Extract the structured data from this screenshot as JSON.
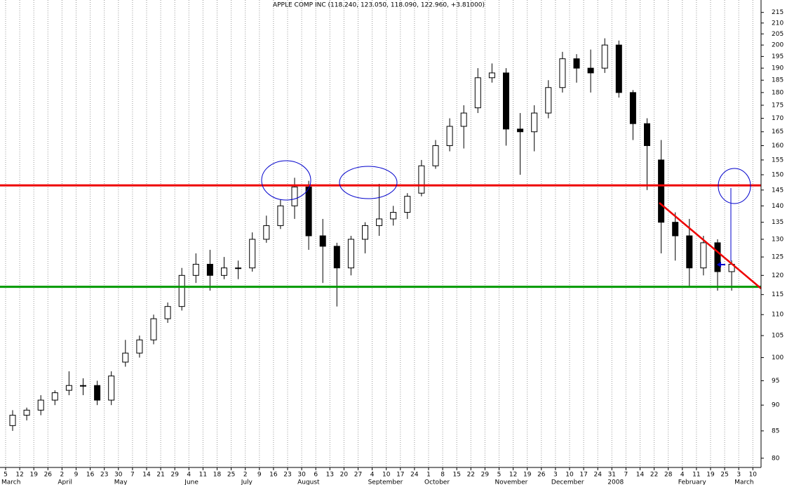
{
  "chart_data": {
    "type": "candlestick",
    "title": "APPLE COMP INC (118.240, 123.050, 118.090, 122.960, +3.81000)",
    "categories": [
      "5",
      "12",
      "19",
      "26",
      "2",
      "9",
      "16",
      "23",
      "30",
      "7",
      "14",
      "21",
      "29",
      "4",
      "11",
      "18",
      "25",
      "2",
      "9",
      "16",
      "23",
      "30",
      "6",
      "13",
      "20",
      "27",
      "4",
      "10",
      "17",
      "24",
      "1",
      "8",
      "15",
      "22",
      "29",
      "5",
      "12",
      "19",
      "26",
      "3",
      "10",
      "17",
      "24",
      "31",
      "7",
      "14",
      "22",
      "28",
      "4",
      "11",
      "19",
      "25",
      "3",
      "10"
    ],
    "months": [
      "March",
      null,
      null,
      null,
      "April",
      null,
      null,
      null,
      "May",
      null,
      null,
      null,
      null,
      "June",
      null,
      null,
      null,
      "July",
      null,
      null,
      null,
      "August",
      null,
      null,
      null,
      null,
      "September",
      null,
      null,
      null,
      "October",
      null,
      null,
      null,
      null,
      "November",
      null,
      null,
      null,
      "December",
      null,
      null,
      null,
      "2008",
      null,
      null,
      null,
      null,
      "February",
      null,
      null,
      null,
      "March",
      null
    ],
    "open": [
      86,
      88,
      89,
      91,
      93,
      94,
      94,
      91,
      99,
      101,
      104,
      109,
      112,
      120,
      123,
      120,
      122,
      122,
      130,
      134,
      140,
      146,
      131,
      128,
      122,
      130,
      134,
      136,
      138,
      144,
      153,
      160,
      167,
      174,
      186,
      188,
      166,
      165,
      172,
      182,
      194,
      190,
      190,
      200,
      180,
      168,
      155,
      135,
      131,
      122,
      129,
      121,
      null,
      null
    ],
    "high": [
      89,
      89.5,
      92,
      93,
      97,
      95.5,
      95,
      97,
      104,
      105,
      110,
      113,
      122,
      126,
      127,
      125,
      124,
      132,
      137,
      142,
      149,
      148,
      136,
      129,
      131,
      135,
      147,
      140,
      144,
      155,
      162,
      170,
      175,
      190,
      192,
      190,
      172,
      175,
      185,
      197,
      196,
      198,
      203,
      202,
      181,
      170,
      162,
      138,
      136,
      131,
      130,
      124,
      null,
      null
    ],
    "low": [
      85,
      87,
      88,
      90,
      92,
      92,
      90,
      90,
      98,
      100,
      103,
      108,
      111,
      118,
      116,
      119,
      119,
      121,
      129,
      133,
      136,
      127,
      118,
      112,
      120,
      126,
      131,
      134,
      136,
      143,
      152,
      158,
      159,
      172,
      184,
      160,
      150,
      158,
      170,
      180,
      184,
      180,
      188,
      178,
      162,
      145,
      126,
      124,
      117,
      120,
      116,
      116,
      null,
      null
    ],
    "close": [
      88,
      89,
      91,
      92.5,
      94,
      94,
      91,
      96,
      101,
      104,
      109,
      112,
      120,
      123,
      120,
      122,
      122,
      130,
      134,
      140,
      146,
      131,
      128,
      122,
      130,
      134,
      136,
      138,
      143,
      153,
      160,
      167,
      172,
      186,
      188,
      166,
      165,
      172,
      182,
      194,
      190,
      188,
      200,
      180,
      168,
      160,
      135,
      131,
      122,
      129,
      121,
      123,
      null,
      null
    ],
    "resistance": 146.5,
    "support": 117,
    "ylim": [
      78.5,
      221
    ],
    "yticks": [
      80,
      85,
      90,
      95,
      100,
      105,
      110,
      115,
      120,
      125,
      130,
      135,
      140,
      145,
      150,
      155,
      160,
      165,
      170,
      175,
      180,
      185,
      190,
      195,
      200,
      205,
      210,
      215
    ],
    "log_scale": true,
    "grid": true
  }
}
